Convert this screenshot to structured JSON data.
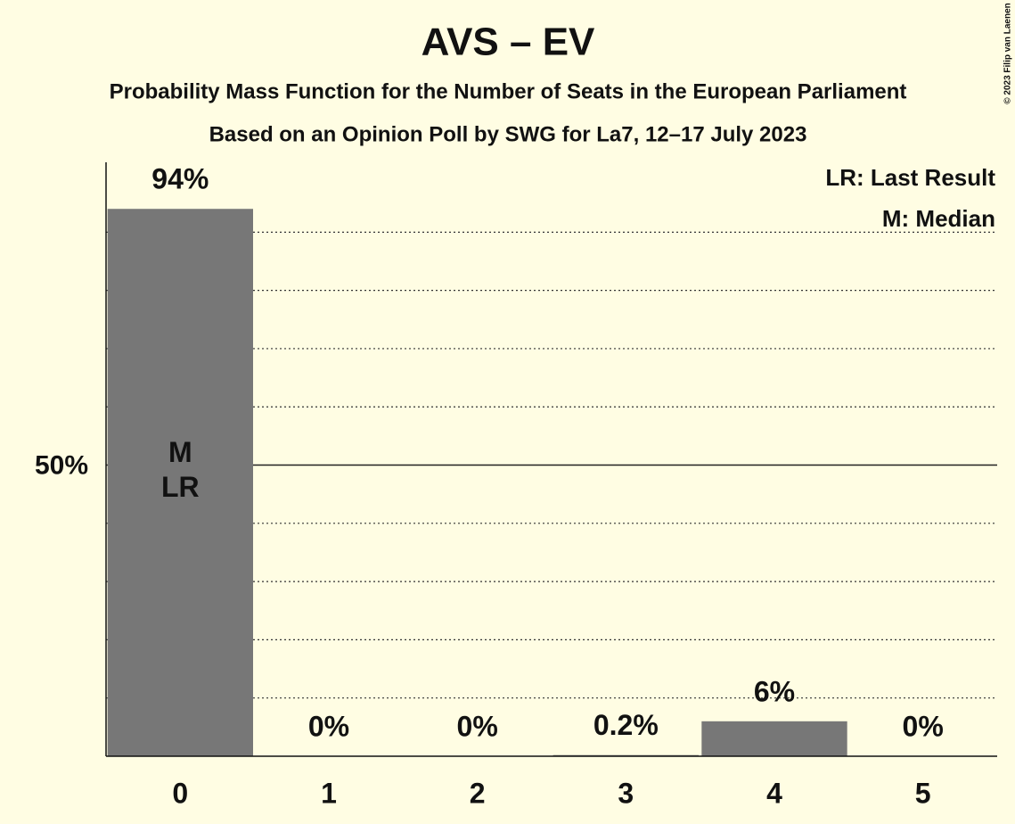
{
  "chart_data": {
    "type": "bar",
    "title": "AVS – EV",
    "subtitle": "Probability Mass Function for the Number of Seats in the European Parliament",
    "subtitle2": "Based on an Opinion Poll by SWG for La7, 12–17 July 2023",
    "copyright": "© 2023 Filip van Laenen",
    "categories": [
      "0",
      "1",
      "2",
      "3",
      "4",
      "5"
    ],
    "values": [
      94,
      0,
      0,
      0.2,
      6,
      0
    ],
    "value_labels": [
      "94%",
      "0%",
      "0%",
      "0.2%",
      "6%",
      "0%"
    ],
    "color": "#777777",
    "ylim": [
      0,
      102
    ],
    "yticks": [
      {
        "value": 50,
        "label": "50%"
      }
    ],
    "minor_yticks": [
      10,
      20,
      30,
      40,
      60,
      70,
      80,
      90
    ],
    "grid": true,
    "median_index": 0,
    "median_label": "M",
    "last_result_index": 0,
    "last_result_label": "LR",
    "legend": [
      "LR: Last Result",
      "M: Median"
    ],
    "legend_position": "top-right"
  }
}
